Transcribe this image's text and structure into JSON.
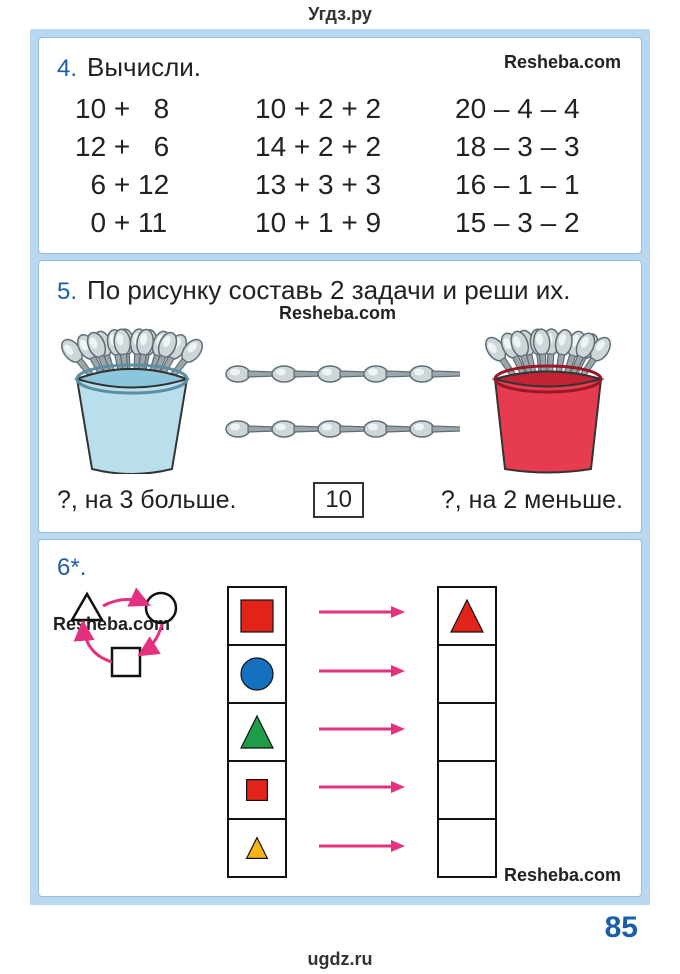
{
  "header_label": "Угдз.ру",
  "footer_label": "ugdz.ru",
  "watermark": "Resheba.com",
  "page_number": "85",
  "p4": {
    "num": "4.",
    "title": "Вычисли.",
    "rows": [
      [
        "10 +   8",
        "10 + 2 + 2",
        "20 – 4 – 4"
      ],
      [
        "12 +   6",
        "14 + 2 + 2",
        "18 – 3 – 3"
      ],
      [
        "  6 + 12",
        "13 + 3 + 3",
        "16 – 1 – 1"
      ],
      [
        "  0 + 11",
        "10 + 1 + 9",
        "15 – 3 – 2"
      ]
    ]
  },
  "p5": {
    "num": "5.",
    "title": "По рисунку составь 2 задачи и реши их.",
    "caption_left": "?, на 3 больше.",
    "caption_mid": "10",
    "caption_right": "?, на 2 меньше.",
    "cup_left": {
      "body": "#b9deec",
      "shade": "#8cc6dd",
      "rim": "#5a8fa3"
    },
    "cup_right": {
      "body": "#e73b4f",
      "shade": "#c22436",
      "rim": "#9a1728"
    },
    "spoon": {
      "bowl": "#cfd6da",
      "bowl_hi": "#eef3f5",
      "handle": "#9aa6ab",
      "outline": "#5f6e74"
    }
  },
  "p6": {
    "num": "6*.",
    "arrow_color": "#e4317f",
    "key_shapes": {
      "triangle": {
        "stroke": "#111",
        "fill": "none"
      },
      "circle": {
        "stroke": "#111",
        "fill": "none"
      },
      "square": {
        "stroke": "#111",
        "fill": "none"
      }
    },
    "left_shapes": [
      {
        "type": "square",
        "fill": "#e1231a",
        "size": "large"
      },
      {
        "type": "circle",
        "fill": "#1471c0",
        "size": "large"
      },
      {
        "type": "triangle",
        "fill": "#1e9c47",
        "size": "large"
      },
      {
        "type": "square",
        "fill": "#e1231a",
        "size": "small"
      },
      {
        "type": "triangle",
        "fill": "#f5b517",
        "size": "small"
      }
    ],
    "right_shapes": [
      {
        "type": "triangle",
        "fill": "#e1231a",
        "size": "large"
      },
      {
        "type": "blank"
      },
      {
        "type": "blank"
      },
      {
        "type": "blank"
      },
      {
        "type": "blank"
      }
    ]
  }
}
